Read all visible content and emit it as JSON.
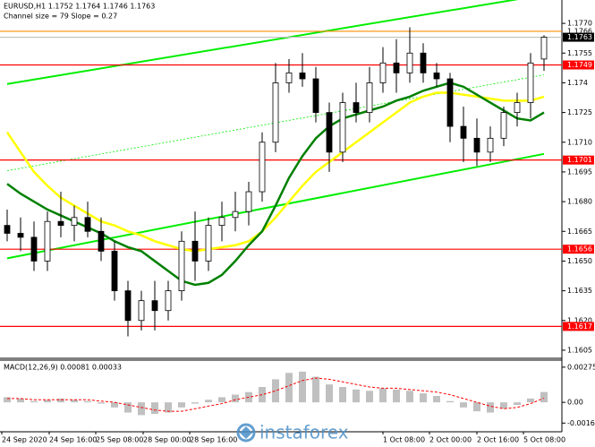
{
  "chart_data": [
    {
      "type": "candlestick",
      "header": "EURUSD,H1  1.1752 1.1764 1.1746 1.1763",
      "subheader": "Channel size = 79 Slope = 0.27",
      "ylim": [
        1.16009,
        1.17818
      ],
      "yticks": [
        {
          "value": 1.177,
          "label": "1.1770"
        },
        1.1755,
        1.174,
        1.1725,
        {
          "value": 1.171,
          "label": "1.1710"
        },
        1.1695,
        {
          "value": 1.168,
          "label": "1.1680"
        },
        1.1665,
        {
          "value": 1.165,
          "label": "1.1650"
        },
        1.1635,
        {
          "value": 1.162,
          "label": "1.1620"
        },
        1.1605
      ],
      "ask_line": 1.1766,
      "bid_line": 1.1763,
      "levels": [
        1.1749,
        1.1701,
        1.1656,
        1.1617
      ],
      "level_color": "#ff0000",
      "time_labels": [
        "24 Sep 2020",
        "24 Sep 16:00",
        "25 Sep 08:00",
        "28 Sep 00:00",
        "28 Sep 16:00",
        "1 Oct 08:00",
        "2 Oct 00:00",
        "2 Oct 16:00",
        "5 Oct 08:00"
      ],
      "candles": [
        [
          1.1668,
          1.1676,
          1.166,
          1.1664
        ],
        [
          1.1664,
          1.1672,
          1.1655,
          1.1662
        ],
        [
          1.1662,
          1.167,
          1.1645,
          1.165
        ],
        [
          1.165,
          1.1675,
          1.1645,
          1.167
        ],
        [
          1.167,
          1.1685,
          1.1662,
          1.1668
        ],
        [
          1.1668,
          1.1678,
          1.166,
          1.1672
        ],
        [
          1.1672,
          1.168,
          1.1662,
          1.1665
        ],
        [
          1.1665,
          1.1672,
          1.165,
          1.1655
        ],
        [
          1.1655,
          1.166,
          1.163,
          1.1635
        ],
        [
          1.1635,
          1.164,
          1.1612,
          1.162
        ],
        [
          1.162,
          1.1635,
          1.1615,
          1.163
        ],
        [
          1.163,
          1.164,
          1.1615,
          1.1625
        ],
        [
          1.1625,
          1.164,
          1.162,
          1.1635
        ],
        [
          1.1635,
          1.1665,
          1.163,
          1.166
        ],
        [
          1.166,
          1.1675,
          1.164,
          1.165
        ],
        [
          1.165,
          1.1672,
          1.1645,
          1.1668
        ],
        [
          1.1668,
          1.168,
          1.166,
          1.1672
        ],
        [
          1.1672,
          1.1685,
          1.1665,
          1.1675
        ],
        [
          1.1675,
          1.169,
          1.1668,
          1.1685
        ],
        [
          1.1685,
          1.1715,
          1.168,
          1.171
        ],
        [
          1.171,
          1.175,
          1.1705,
          1.174
        ],
        [
          1.174,
          1.1752,
          1.1735,
          1.1745
        ],
        [
          1.1745,
          1.1755,
          1.1738,
          1.1742
        ],
        [
          1.1742,
          1.1748,
          1.172,
          1.1725
        ],
        [
          1.1725,
          1.173,
          1.1695,
          1.1705
        ],
        [
          1.1705,
          1.1735,
          1.17,
          1.173
        ],
        [
          1.173,
          1.174,
          1.172,
          1.1725
        ],
        [
          1.1725,
          1.1748,
          1.172,
          1.174
        ],
        [
          1.174,
          1.1758,
          1.1735,
          1.175
        ],
        [
          1.175,
          1.1762,
          1.1735,
          1.1745
        ],
        [
          1.1745,
          1.1768,
          1.174,
          1.1755
        ],
        [
          1.1755,
          1.176,
          1.174,
          1.1745
        ],
        [
          1.1745,
          1.175,
          1.1738,
          1.1742
        ],
        [
          1.1742,
          1.1745,
          1.171,
          1.1718
        ],
        [
          1.1718,
          1.1728,
          1.17,
          1.1712
        ],
        [
          1.1712,
          1.1722,
          1.1698,
          1.1705
        ],
        [
          1.1705,
          1.1718,
          1.17,
          1.1712
        ],
        [
          1.1712,
          1.1728,
          1.1708,
          1.1725
        ],
        [
          1.1725,
          1.1735,
          1.1718,
          1.173
        ],
        [
          1.173,
          1.1755,
          1.1722,
          1.175
        ],
        [
          1.1752,
          1.1764,
          1.1746,
          1.1763
        ]
      ],
      "series": [
        {
          "color": "#ffff00",
          "values": [
            1.1715,
            1.1705,
            1.1695,
            1.1688,
            1.1682,
            1.1678,
            1.1674,
            1.167,
            1.1668,
            1.1665,
            1.1663,
            1.166,
            1.1658,
            1.1656,
            1.1655,
            1.1656,
            1.1657,
            1.1658,
            1.166,
            1.1665,
            1.1672,
            1.168,
            1.1688,
            1.1695,
            1.17,
            1.1705,
            1.171,
            1.1715,
            1.172,
            1.1725,
            1.173,
            1.1733,
            1.1735,
            1.1735,
            1.1734,
            1.1733,
            1.1732,
            1.1731,
            1.1731,
            1.1731,
            1.1733
          ]
        },
        {
          "color": "#008000",
          "values": [
            1.1689,
            1.1684,
            1.168,
            1.1676,
            1.1673,
            1.167,
            1.1667,
            1.1664,
            1.166,
            1.1657,
            1.1655,
            1.165,
            1.1645,
            1.164,
            1.1638,
            1.1639,
            1.1643,
            1.165,
            1.1658,
            1.1665,
            1.1678,
            1.1692,
            1.1703,
            1.1712,
            1.1718,
            1.1722,
            1.1724,
            1.1726,
            1.1728,
            1.1731,
            1.1733,
            1.1736,
            1.1738,
            1.174,
            1.1738,
            1.1734,
            1.173,
            1.1726,
            1.1722,
            1.1721,
            1.1725
          ]
        }
      ],
      "channel": {
        "color": "#00ee00",
        "upper": [
          1.17394,
          1.17844
        ],
        "middle": [
          1.16956,
          1.1744
        ],
        "lower": [
          1.16514,
          1.17041
        ]
      },
      "watermark": "instaforex"
    },
    {
      "type": "macd",
      "title": "MACD(12,26,9) 0.00081 0.00033",
      "ylim": [
        -0.0023,
        0.0033
      ],
      "yticks": [
        0.00275,
        {
          "value": 0,
          "label": "0.00"
        },
        -0.00162
      ],
      "histogram": [
        0.0004,
        0.0003,
        0.0001,
        0.0002,
        0.0003,
        0.0002,
        0.0001,
        -0.0001,
        -0.0004,
        -0.0008,
        -0.001,
        -0.0009,
        -0.0008,
        -0.0004,
        -0.0001,
        0.0002,
        0.0004,
        0.0006,
        0.0008,
        0.0012,
        0.0018,
        0.0023,
        0.0024,
        0.002,
        0.0014,
        0.0012,
        0.001,
        0.0009,
        0.0011,
        0.001,
        0.0009,
        0.0007,
        0.0005,
        0.0001,
        -0.0004,
        -0.0007,
        -0.0008,
        -0.0005,
        -0.0002,
        0.0003,
        0.00081
      ],
      "signal": [
        0.0003,
        0.0003,
        0.0002,
        0.0002,
        0.0002,
        0.0002,
        0.0002,
        0.0001,
        0.0,
        -0.0002,
        -0.0004,
        -0.0006,
        -0.0007,
        -0.0007,
        -0.0005,
        -0.0003,
        -0.0001,
        0.0002,
        0.0004,
        0.0006,
        0.0009,
        0.0013,
        0.0017,
        0.0019,
        0.0018,
        0.0016,
        0.0014,
        0.0012,
        0.0011,
        0.0011,
        0.001,
        0.0009,
        0.0008,
        0.0006,
        0.0003,
        0.0,
        -0.0003,
        -0.0005,
        -0.0004,
        -0.0001,
        0.00033
      ],
      "histogram_color": "#c0c0c0",
      "signal_color": "#ff0000"
    }
  ]
}
